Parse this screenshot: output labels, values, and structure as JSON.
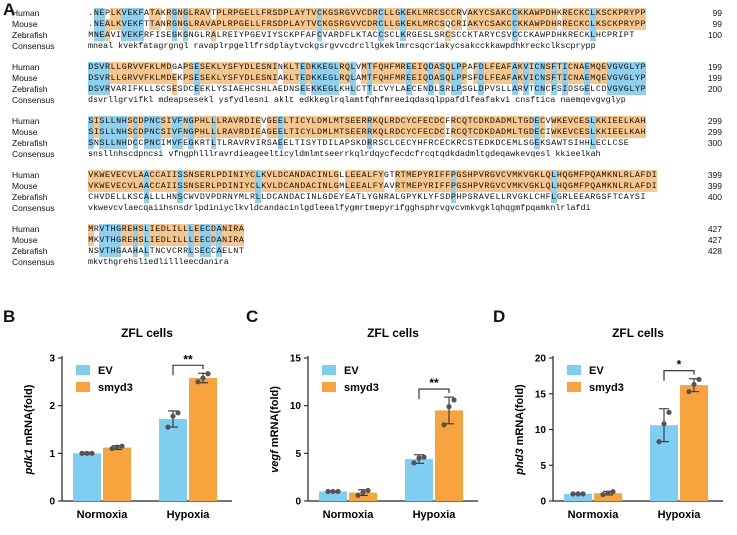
{
  "panels": {
    "a": "A",
    "b": "B",
    "c": "C",
    "d": "D"
  },
  "alignment": {
    "blocks": [
      {
        "rows": [
          {
            "label": "Human",
            "seq": ".NEPLKVEKFATAKRGNGLRAVTPLRPGELLFRSDPLAYTVCKGSRGVVCDRCLLGKEKLMRCSCCRVAKYCSAKCCKKAWPDHKRECKCLKSCKPRYPP",
            "end": "99"
          },
          {
            "label": "Mouse",
            "seq": ".NEALKVEKFTTANRGNGLRAVAPLRPGELLFRSDPLAYTVCKGSRGVVCDRCLLGKEKLMRCSQCRIAKYCSAKCCKKAWPDHRRECKCLKSCKPRYPP",
            "end": "99"
          },
          {
            "label": "Zebrafish",
            "seq": "MNEAVIVEKFRFISEGKGNGLRALREIYPGEVIYSCKPFAFCVARDFLKTACCSCLKRGESLSRCSCCKTARYCSVCCCKAWPDHKRECKLHCPRIPT",
            "end": "100"
          },
          {
            "label": "Consensus",
            "seq": "mneal kvekfatagrgngl ravaplrpgellfrsdplaytvckgsrgvvcdrcllgkeklmrcsqcriakycsakcckkawpdhkreckclkscprypp",
            "end": ""
          }
        ]
      },
      {
        "rows": [
          {
            "label": "Human",
            "seq": "DSVRLLGRVVFKLMDGAPSESEKLYSFYDLESNINKLTEDKKEGLRQLVMTFQHFMREEIQDASQLPPAFDLFEAFAKVICNSFTICNAEMQEVGVGLYP",
            "end": "199"
          },
          {
            "label": "Mouse",
            "seq": "DSVRLLGRVVFKLMDEKPSESEKLYSFYDLESNIAKLTEDKKEGLRQLAMTFQHFMREEIQDASQLPPSFDLFEAFAKVICNSFTICNAEMQEVGVGLYP",
            "end": "199"
          },
          {
            "label": "Zebrafish",
            "seq": "DSVRVARIFKLLSCSESDCEEKLYSIAEHCSHLAEDNSEEKKEGLKHLCTTLCVYLAECENDLSRLPSGLDPVSLLARVTCNCFSIDSGELCDVGVGLYP",
            "end": "200"
          },
          {
            "label": "Consensus",
            "seq": "dsvrllgrvifkl mdeapsesekl ysfydlesni aklt edkkeglrqlamtfqhfmreeiqdasqlppafdlfeafakvi cnsftica naemqevgvglyp",
            "end": ""
          }
        ]
      },
      {
        "rows": [
          {
            "label": "Human",
            "seq": "SISLLNHSCDPNCSIVFNGPHLLLRAVRDIEVGEELTICYLDMLMTSEERRKQLRDCYCFECDCFRCQTCDKDADMLTGDECVWKEVCESLKKIEELKAH",
            "end": "299"
          },
          {
            "label": "Mouse",
            "seq": "SISLLNHSCDPNCSIVFNGPHLLLRAVRDIEAGEELTICYLDMLMTSEERRKQLRDCYCFECDCIRCQTCDKDADMLTGDECIWKEVCESLKKIEELKAH",
            "end": "299"
          },
          {
            "label": "Zebrafish",
            "seq": "SNSLLNHDCCPNCIMVFEGKRTLTLRAVRVIRSAEELTISYTDILAPSKDRRSCLCECYHFRCECKRCSTEDKDCEMLSGEKSAWTSIHHLECLCSE",
            "end": "300"
          },
          {
            "label": "Consensus",
            "seq": "snsllnhscdpncsi vfngphlllravrdieageelticyldmlmtseerrkqlrdqycfecdcfrcqtqdkdadmltgdeqawkevqesl kkieelkah",
            "end": ""
          }
        ]
      },
      {
        "rows": [
          {
            "label": "Human",
            "seq": "VKWEVECVLAACCAIISSNSERLPDINIYCLKVLDCANDACINLGLLEEALFYGTRTMEPYRIFFPGSHPVRGVCVMKVGKLQLHQGMFPQAMKNLRLAFDI",
            "end": "399"
          },
          {
            "label": "Mouse",
            "seq": "VKWEVECVLAACCAIISSNSERLPDINIYCLKVLDCANDACINLGMLEEALFYAVRTMEPYRIFFPGSHPVRGVCVMKVGKLQLHQGMFPQAMKNLRLAFDI",
            "end": "399"
          },
          {
            "label": "Zebrafish",
            "seq": "CHVDELLKSCALLLHNSCWVDVPDRNYMLRLLDCANDACINLGDEYEATLYGNRALGPYKLYFSDPHPSRAVELLRVGKLCHFLGRLEEARGSFTCAYSI",
            "end": "400"
          },
          {
            "label": "Consensus",
            "seq": "vkwevcvlaecqaiihsnsdrlpdiniyclkvldcandacinlgdleealfygmrtmepyrifgghsphrvgvcvmkvgklqhqgmfpqamknlrlafdi",
            "end": ""
          }
        ]
      },
      {
        "rows": [
          {
            "label": "Human",
            "seq": "MRVTHGREHSLIEDLILLLEECDANIRA",
            "end": "427"
          },
          {
            "label": "Mouse",
            "seq": "MKVTHGREHSLIEDLILLLEECDANIRA",
            "end": "427"
          },
          {
            "label": "Zebrafish",
            "seq": "NSVTHGAAHALTNCVCRRLSECCAELNT",
            "end": "428"
          },
          {
            "label": "Consensus",
            "seq": "mkvthgrehsliedlillleecdanira",
            "end": ""
          }
        ]
      }
    ]
  },
  "colors": {
    "identical": "#8fd0ef",
    "similar": "#f6c68c",
    "highlight": "#37c88e",
    "ev": "#7fcdf0",
    "smyd3": "#f7a33e"
  },
  "chart_data": [
    {
      "type": "bar",
      "title": "ZFL cells",
      "ylabel_italic": "pdk1",
      "ylabel_rest": " mRNA(fold)",
      "categories": [
        "Normoxia",
        "Hypoxia"
      ],
      "series": [
        {
          "name": "EV",
          "values": [
            1.0,
            1.72
          ],
          "errors": [
            0.02,
            0.17
          ],
          "points": [
            [
              1.0,
              1.0,
              1.0
            ],
            [
              1.55,
              1.78,
              1.85
            ]
          ]
        },
        {
          "name": "smyd3",
          "values": [
            1.12,
            2.58
          ],
          "errors": [
            0.04,
            0.1
          ],
          "points": [
            [
              1.1,
              1.13,
              1.15
            ],
            [
              2.5,
              2.58,
              2.67
            ]
          ]
        }
      ],
      "ylim": [
        0,
        3
      ],
      "yticks": [
        "0",
        "1",
        "2",
        "3"
      ],
      "significance": "**",
      "legend": "top-left"
    },
    {
      "type": "bar",
      "title": "ZFL cells",
      "ylabel_italic": "vegf",
      "ylabel_rest": " mRNA(fold)",
      "categories": [
        "Normoxia",
        "Hypoxia"
      ],
      "series": [
        {
          "name": "EV",
          "values": [
            1.0,
            4.4
          ],
          "errors": [
            0.05,
            0.45
          ],
          "points": [
            [
              1.0,
              1.0,
              1.0
            ],
            [
              4.0,
              4.5,
              4.6
            ]
          ]
        },
        {
          "name": "smyd3",
          "values": [
            0.88,
            9.5
          ],
          "errors": [
            0.3,
            1.4
          ],
          "points": [
            [
              0.6,
              0.9,
              1.1
            ],
            [
              8.0,
              9.9,
              10.6
            ]
          ]
        }
      ],
      "ylim": [
        0,
        15
      ],
      "yticks": [
        "0",
        "5",
        "10",
        "15"
      ],
      "significance": "**",
      "legend": "top-left"
    },
    {
      "type": "bar",
      "title": "ZFL cells",
      "ylabel_italic": "phd3",
      "ylabel_rest": " mRNA(fold)",
      "categories": [
        "Normoxia",
        "Hypoxia"
      ],
      "series": [
        {
          "name": "EV",
          "values": [
            1.0,
            10.6
          ],
          "errors": [
            0.05,
            2.3
          ],
          "points": [
            [
              1.0,
              1.0,
              1.0
            ],
            [
              8.3,
              10.8,
              12.4
            ]
          ]
        },
        {
          "name": "smyd3",
          "values": [
            1.1,
            16.2
          ],
          "errors": [
            0.25,
            0.9
          ],
          "points": [
            [
              0.9,
              1.1,
              1.3
            ],
            [
              15.3,
              16.3,
              17.0
            ]
          ]
        }
      ],
      "ylim": [
        0,
        20
      ],
      "yticks": [
        "0",
        "5",
        "10",
        "15",
        "20"
      ],
      "significance": "*",
      "legend": "top-left"
    }
  ]
}
